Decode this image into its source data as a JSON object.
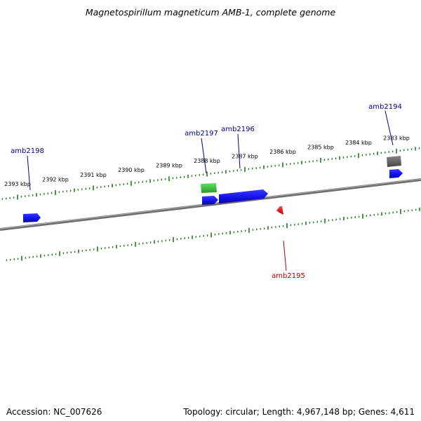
{
  "title": "Magnetospirillum magneticum AMB-1, complete genome",
  "footer": {
    "accession": "Accession: NC_007626",
    "summary": "Topology: circular; Length: 4,967,148 bp; Genes: 4,611"
  },
  "colors": {
    "backbone": "#7f7f7f",
    "ticks": "#1f7a1f",
    "forward_gene": "#1010e8",
    "reverse_gene": "#ee1111",
    "rna_gene": "#3ec43e",
    "other_gene": "#666666",
    "forward_label": "#00008b",
    "reverse_label": "#b00000"
  },
  "ruler": {
    "unit": "kbp",
    "major_ticks": [
      {
        "label": "2393 kbp"
      },
      {
        "label": "2392 kbp"
      },
      {
        "label": "2391 kbp"
      },
      {
        "label": "2390 kbp"
      },
      {
        "label": "2389 kbp"
      },
      {
        "label": "2388 kbp"
      },
      {
        "label": "2387 kbp"
      },
      {
        "label": "2386 kbp"
      },
      {
        "label": "2385 kbp"
      },
      {
        "label": "2384 kbp"
      },
      {
        "label": "2383 kbp"
      }
    ]
  },
  "genes": [
    {
      "id": "amb2198",
      "label": "amb2198",
      "strand": "+"
    },
    {
      "id": "amb2197",
      "label": "amb2197",
      "strand": "+"
    },
    {
      "id": "amb2196",
      "label": "amb2196",
      "strand": "+"
    },
    {
      "id": "amb2195",
      "label": "amb2195",
      "strand": "-"
    },
    {
      "id": "amb2194",
      "label": "amb2194",
      "strand": "+"
    }
  ]
}
